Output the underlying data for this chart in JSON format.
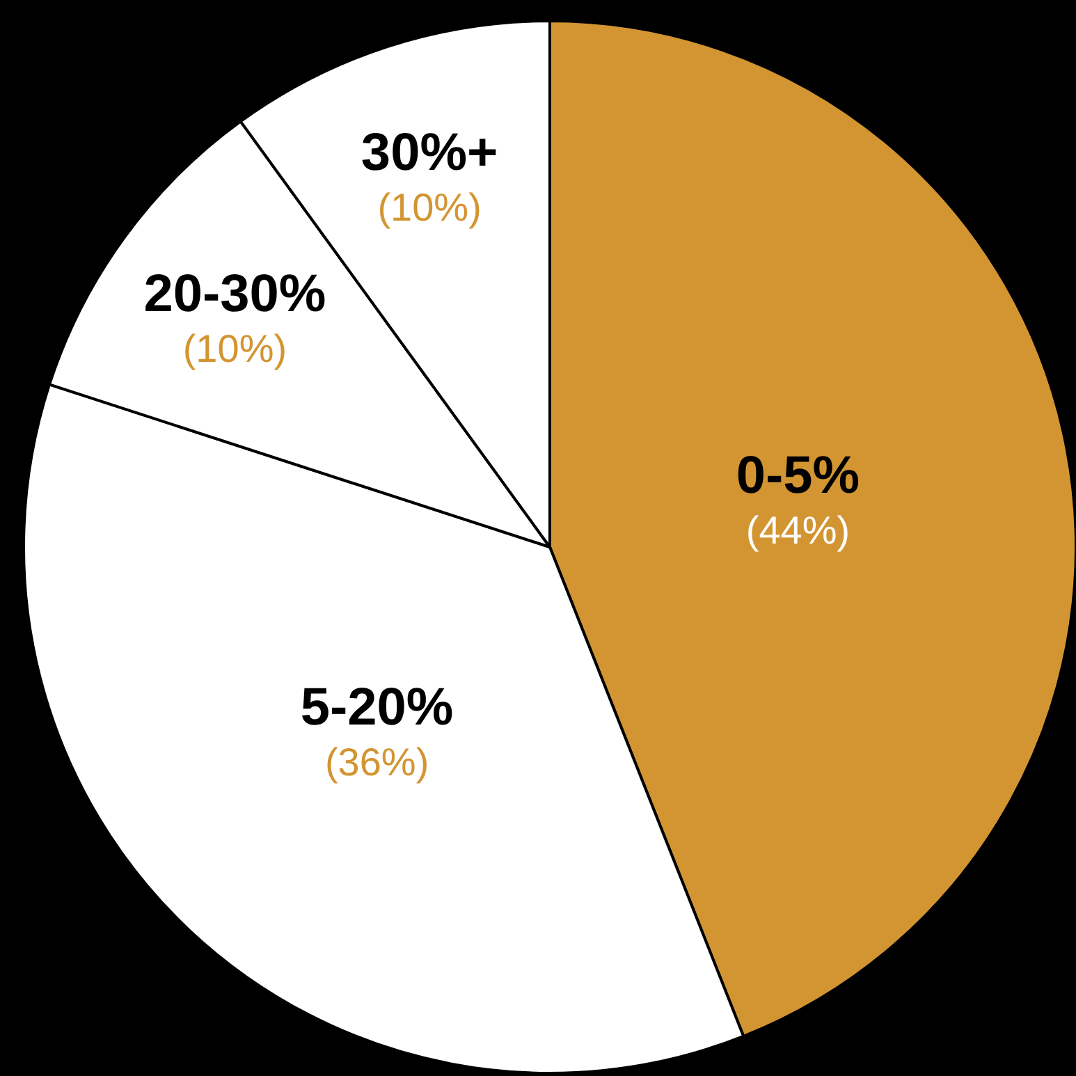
{
  "chart_data": {
    "type": "pie",
    "categories": [
      "0-5%",
      "5-20%",
      "20-30%",
      "30%+"
    ],
    "values": [
      44,
      36,
      10,
      10
    ],
    "colors": [
      "#d39532",
      "#ffffff",
      "#ffffff",
      "#ffffff"
    ],
    "value_labels": [
      "(44%)",
      "(36%)",
      "(10%)",
      "(10%)"
    ],
    "legend": false
  }
}
